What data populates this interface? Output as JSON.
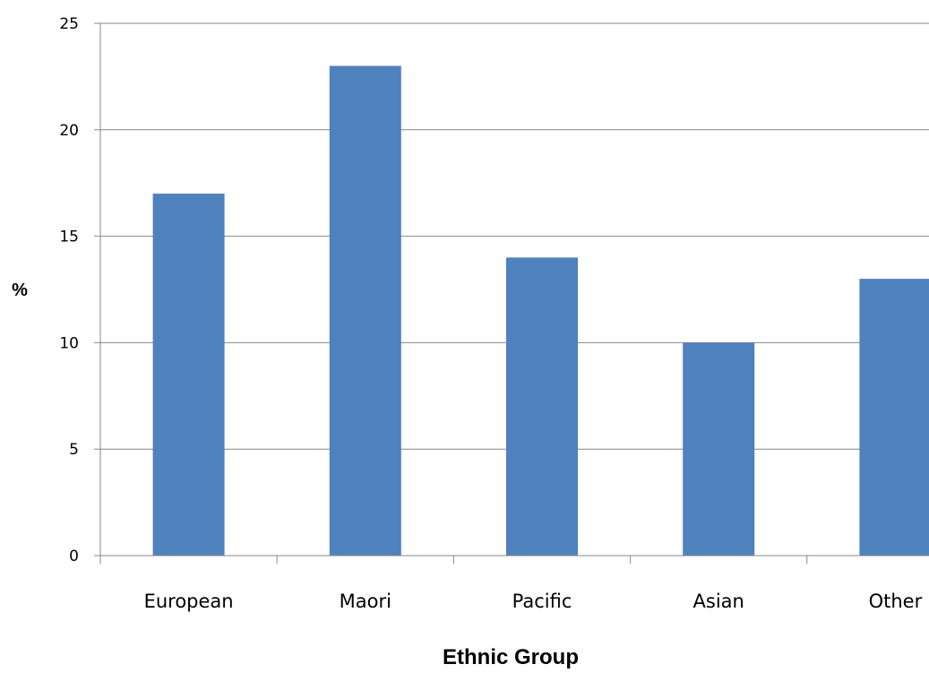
{
  "chart_data": {
    "type": "bar",
    "title": "",
    "xlabel": "Ethnic Group",
    "ylabel": "%",
    "categories": [
      "European",
      "Maori",
      "Pacific",
      "Asian",
      "Other"
    ],
    "values": [
      17,
      23,
      14,
      10,
      13
    ],
    "ylim": [
      0,
      25
    ],
    "yticks": [
      0,
      5,
      10,
      15,
      20,
      25
    ],
    "grid": "horizontal",
    "legend": "none",
    "bar_color": "#4F81BD",
    "grid_color": "#868686"
  }
}
